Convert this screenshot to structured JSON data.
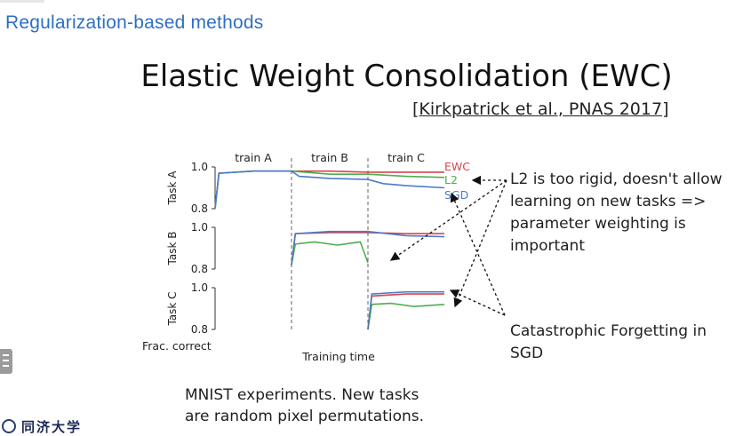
{
  "header": {
    "section_title": "Regularization-based methods",
    "slide_title": "Elastic Weight Consolidation (EWC)",
    "citation_open": "[",
    "citation_link": "Kirkpatrick et al., PNAS 2017",
    "citation_close": "]"
  },
  "chart_data": {
    "type": "line",
    "phases": [
      "train A",
      "train B",
      "train C"
    ],
    "panels": [
      {
        "ylabel": "Task A",
        "ylim": [
          0.8,
          1.0
        ],
        "yticks": [
          "1.0",
          "0.8"
        ]
      },
      {
        "ylabel": "Task B",
        "ylim": [
          0.8,
          1.0
        ],
        "yticks": [
          "1.0",
          "0.8"
        ]
      },
      {
        "ylabel": "Task C",
        "ylim": [
          0.8,
          1.0
        ],
        "yticks": [
          "1.0",
          "0.8"
        ]
      }
    ],
    "xlabel": "Training time",
    "ylabel": "Frac. correct",
    "legend": [
      {
        "name": "EWC",
        "color": "#d9434b"
      },
      {
        "name": "L2",
        "color": "#4fae4f"
      },
      {
        "name": "SGD",
        "color": "#4a7cc9"
      }
    ],
    "x": [
      0,
      0.5,
      1,
      1.5,
      2,
      2.5,
      3
    ],
    "series": [
      {
        "name": "EWC",
        "panel": "Task A",
        "x": [
          0,
          0.05,
          0.5,
          1,
          1.5,
          2,
          2.5,
          3
        ],
        "values": [
          0.8,
          0.97,
          0.98,
          0.98,
          0.98,
          0.975,
          0.975,
          0.975
        ]
      },
      {
        "name": "L2",
        "panel": "Task A",
        "x": [
          0,
          0.05,
          0.5,
          1,
          1.5,
          2,
          2.5,
          3
        ],
        "values": [
          0.8,
          0.97,
          0.98,
          0.98,
          0.965,
          0.965,
          0.955,
          0.95
        ]
      },
      {
        "name": "SGD",
        "panel": "Task A",
        "x": [
          0,
          0.05,
          0.5,
          1,
          1.1,
          1.5,
          2,
          2.2,
          2.5,
          3
        ],
        "values": [
          0.8,
          0.97,
          0.98,
          0.98,
          0.955,
          0.945,
          0.94,
          0.92,
          0.91,
          0.9
        ]
      },
      {
        "name": "EWC",
        "panel": "Task B",
        "x": [
          1,
          1.05,
          1.5,
          2,
          2.5,
          3
        ],
        "values": [
          0.82,
          0.97,
          0.975,
          0.975,
          0.97,
          0.97
        ]
      },
      {
        "name": "L2",
        "panel": "Task B",
        "x": [
          1,
          1.05,
          1.3,
          1.6,
          1.9,
          2
        ],
        "values": [
          0.82,
          0.92,
          0.93,
          0.915,
          0.93,
          0.83
        ]
      },
      {
        "name": "SGD",
        "panel": "Task B",
        "x": [
          1,
          1.05,
          1.5,
          2,
          2.5,
          3
        ],
        "values": [
          0.82,
          0.97,
          0.98,
          0.98,
          0.96,
          0.955
        ]
      },
      {
        "name": "EWC",
        "panel": "Task C",
        "x": [
          2,
          2.05,
          2.5,
          3
        ],
        "values": [
          0.8,
          0.96,
          0.97,
          0.97
        ]
      },
      {
        "name": "L2",
        "panel": "Task C",
        "x": [
          2,
          2.05,
          2.3,
          2.6,
          3
        ],
        "values": [
          0.8,
          0.92,
          0.925,
          0.91,
          0.92
        ]
      },
      {
        "name": "SGD",
        "panel": "Task C",
        "x": [
          2,
          2.05,
          2.5,
          3
        ],
        "values": [
          0.8,
          0.97,
          0.98,
          0.98
        ]
      }
    ]
  },
  "notes": {
    "top": "L2 is too rigid, doesn't allow learning on new tasks => parameter weighting is important",
    "bottom": "Catastrophic Forgetting in SGD"
  },
  "caption": {
    "line1": "MNIST experiments. New tasks",
    "line2": "are random pixel permutations."
  },
  "footer": {
    "university": "同济大学"
  },
  "colors": {
    "section_title": "#2f6fc4",
    "ewc": "#d9434b",
    "l2": "#4fae4f",
    "sgd": "#4a7cc9"
  }
}
